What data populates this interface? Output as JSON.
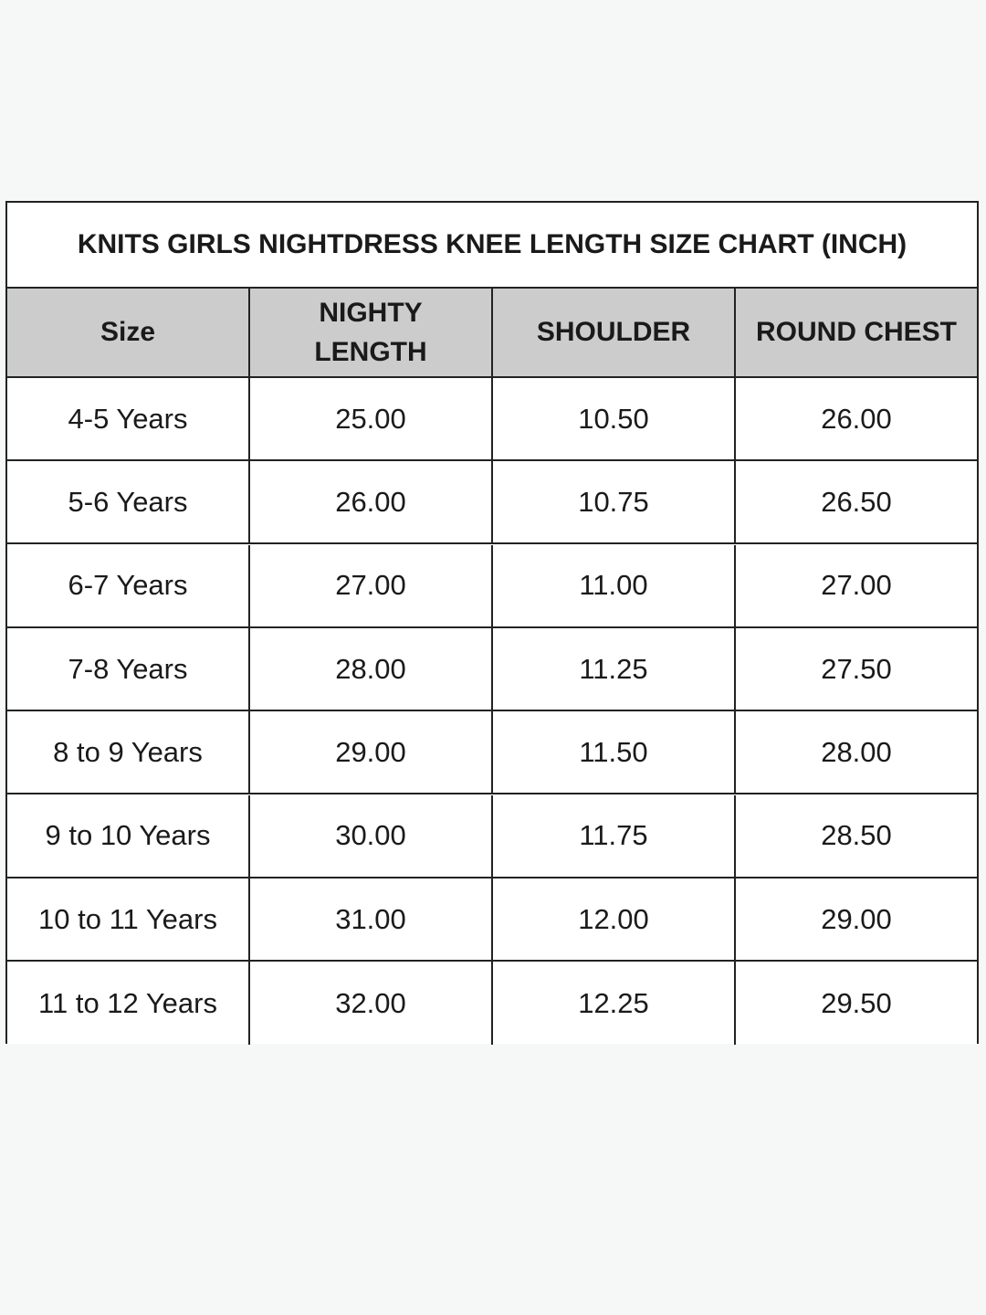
{
  "title": "KNITS GIRLS NIGHTDRESS KNEE LENGTH SIZE CHART (INCH)",
  "headers": [
    "Size",
    "NIGHTY LENGTH",
    "SHOULDER",
    "ROUND CHEST"
  ],
  "rows": [
    [
      "4-5 Years",
      "25.00",
      "10.50",
      "26.00"
    ],
    [
      "5-6 Years",
      "26.00",
      "10.75",
      "26.50"
    ],
    [
      "6-7 Years",
      "27.00",
      "11.00",
      "27.00"
    ],
    [
      "7-8 Years",
      "28.00",
      "11.25",
      "27.50"
    ],
    [
      "8 to 9 Years",
      "29.00",
      "11.50",
      "28.00"
    ],
    [
      "9 to 10 Years",
      "30.00",
      "11.75",
      "28.50"
    ],
    [
      "10 to 11 Years",
      "31.00",
      "12.00",
      "29.00"
    ],
    [
      "11 to 12 Years",
      "32.00",
      "12.25",
      "29.50"
    ]
  ],
  "colors": {
    "header_bg": "#cccccc",
    "page_bg": "#f6f7f7",
    "border": "#222222"
  }
}
